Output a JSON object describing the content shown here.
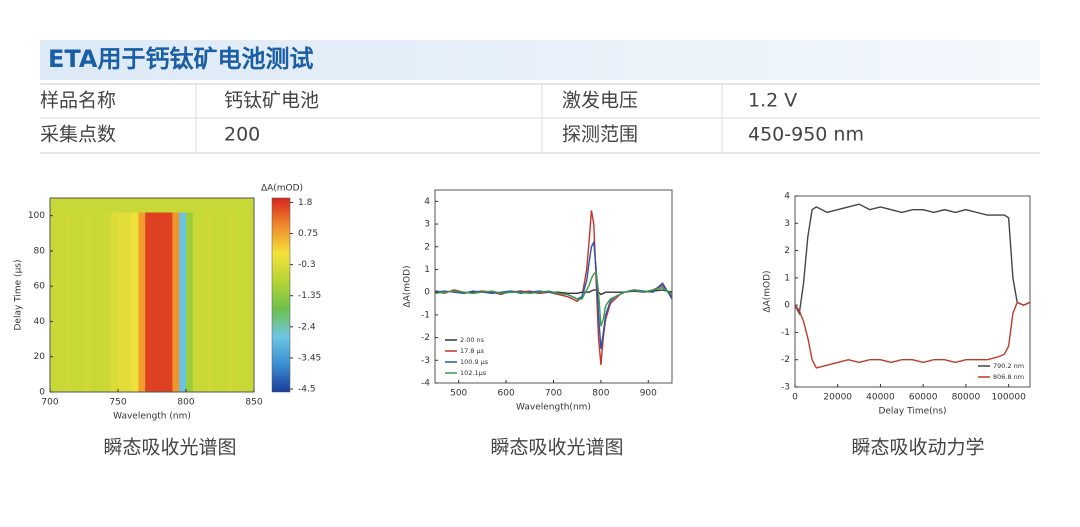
{
  "header": {
    "title": "ETA用于钙钛矿电池测试"
  },
  "table": {
    "rows": [
      [
        "样品名称",
        "钙钛矿电池",
        "激发电压",
        "1.2 V"
      ],
      [
        "采集点数",
        "200",
        "探测范围",
        "450-950 nm"
      ]
    ]
  },
  "chart_data": [
    {
      "type": "heatmap",
      "caption": "瞬态吸收光谱图",
      "xlabel": "Wavelength (nm)",
      "ylabel": "Delay Time  (μs)",
      "colorbar_label": "ΔA(mOD)",
      "xbins": [
        700,
        705,
        710,
        715,
        720,
        725,
        730,
        735,
        740,
        745,
        750,
        755,
        760,
        765,
        770,
        775,
        780,
        785,
        790,
        795,
        800,
        805,
        810,
        815,
        820,
        825,
        830,
        835,
        840,
        845,
        850
      ],
      "ybins": [
        0,
        102,
        110
      ],
      "z": [
        [
          -0.6,
          -0.6,
          -0.5,
          -0.6,
          -0.6,
          -0.5,
          -0.6,
          -0.6,
          -0.5,
          -0.3,
          -0.2,
          -0.2,
          0.0,
          0.8,
          1.7,
          1.7,
          1.7,
          1.7,
          0.9,
          -2.8,
          -1.2,
          -0.6,
          -0.6,
          -0.5,
          -0.6,
          -0.6,
          -0.5,
          -0.6,
          -0.6,
          -0.6
        ],
        [
          -0.6,
          -0.6,
          -0.6,
          -0.6,
          -0.6,
          -0.6,
          -0.6,
          -0.6,
          -0.6,
          -0.6,
          -0.6,
          -0.6,
          -0.6,
          -0.6,
          -0.6,
          -0.6,
          -0.6,
          -0.6,
          -0.6,
          -0.6,
          -0.6,
          -0.6,
          -0.6,
          -0.6,
          -0.6,
          -0.6,
          -0.6,
          -0.6,
          -0.6,
          -0.6
        ]
      ],
      "xlim": [
        700,
        850
      ],
      "xticks": [
        700,
        750,
        800,
        850
      ],
      "ylim": [
        0,
        110
      ],
      "yticks": [
        0,
        20,
        40,
        60,
        80,
        100
      ],
      "zlim": [
        -4.6,
        1.95
      ],
      "zticks": [
        1.8,
        0.75,
        -0.3,
        -1.35,
        -2.4,
        -3.45,
        -4.5
      ],
      "colormap": [
        "#1b3d9a",
        "#3b8fd2",
        "#6fc6e2",
        "#6dbf4c",
        "#b6d436",
        "#f4e13a",
        "#ef8a2b",
        "#d6261f"
      ]
    },
    {
      "type": "line",
      "caption": "瞬态吸收光谱图",
      "xlabel": "Wavelength(nm)",
      "ylabel": "ΔA(mOD)",
      "legend": "lower left",
      "x": [
        450,
        470,
        490,
        510,
        530,
        550,
        570,
        590,
        610,
        630,
        650,
        670,
        690,
        710,
        730,
        740,
        750,
        760,
        770,
        775,
        780,
        785,
        790,
        795,
        800,
        805,
        810,
        820,
        830,
        840,
        850,
        870,
        890,
        910,
        930,
        950
      ],
      "series": [
        {
          "name": "2.00 ns",
          "color": "#333333",
          "values": [
            0.05,
            0,
            0.05,
            -0.05,
            0,
            0.05,
            0,
            -0.05,
            0,
            0.05,
            0,
            -0.05,
            0,
            0,
            -0.05,
            -0.05,
            -0.05,
            0,
            0,
            0,
            0.05,
            0.1,
            0.1,
            0,
            -0.1,
            -0.05,
            0,
            0,
            0,
            0,
            0,
            0.05,
            0,
            0.05,
            0.1,
            0
          ]
        },
        {
          "name": "17.8 μs",
          "color": "#c8302c",
          "values": [
            0.05,
            -0.05,
            0.1,
            0,
            -0.05,
            0.05,
            0,
            -0.1,
            0.05,
            0,
            0.05,
            -0.05,
            0,
            -0.1,
            -0.2,
            -0.3,
            -0.4,
            -0.2,
            1.0,
            2.2,
            3.6,
            3.0,
            0.5,
            -2.0,
            -3.2,
            -2.0,
            -1.2,
            -0.5,
            -0.3,
            -0.1,
            0,
            0.1,
            0,
            0.1,
            0.3,
            -0.2
          ]
        },
        {
          "name": "100.9 μs",
          "color": "#2456b0",
          "values": [
            0,
            0.05,
            0,
            -0.05,
            0.05,
            0,
            -0.05,
            0,
            0.05,
            -0.05,
            0,
            0.05,
            0,
            -0.05,
            -0.1,
            -0.2,
            -0.3,
            -0.2,
            0.5,
            1.3,
            2.0,
            2.2,
            1.0,
            -1.0,
            -2.5,
            -1.8,
            -1.0,
            -0.4,
            -0.2,
            -0.1,
            0,
            0.1,
            0.05,
            0,
            0.4,
            -0.3
          ]
        },
        {
          "name": "102.1μs",
          "color": "#3a9a4a",
          "values": [
            -0.05,
            0,
            0.05,
            0,
            -0.05,
            0,
            0.05,
            -0.05,
            0,
            0,
            -0.05,
            0,
            0.05,
            -0.05,
            -0.1,
            -0.2,
            -0.3,
            -0.3,
            0.1,
            0.3,
            0.6,
            0.8,
            0.9,
            0,
            -1.5,
            -1.2,
            -0.6,
            -0.3,
            -0.2,
            -0.1,
            0,
            0.1,
            0,
            0.1,
            0.2,
            -0.1
          ]
        }
      ],
      "xlim": [
        450,
        950
      ],
      "xticks": [
        500,
        600,
        700,
        800,
        900
      ],
      "ylim": [
        -4,
        4.5
      ],
      "yticks": [
        -4,
        -3,
        -2,
        -1,
        0,
        1,
        2,
        3,
        4
      ]
    },
    {
      "type": "line",
      "caption": "瞬态吸收动力学",
      "xlabel": "Delay Time(ns)",
      "ylabel": "ΔA(mOD)",
      "legend": "lower right",
      "x": [
        0,
        2000,
        4000,
        6000,
        8000,
        10000,
        15000,
        20000,
        25000,
        30000,
        35000,
        40000,
        45000,
        50000,
        55000,
        60000,
        65000,
        70000,
        75000,
        80000,
        85000,
        90000,
        95000,
        98000,
        100000,
        102000,
        104000,
        107000,
        110000
      ],
      "series": [
        {
          "name": "790.2 nm",
          "color": "#444444",
          "values": [
            0,
            -0.3,
            0.8,
            2.5,
            3.5,
            3.6,
            3.4,
            3.5,
            3.6,
            3.7,
            3.5,
            3.6,
            3.5,
            3.4,
            3.5,
            3.5,
            3.4,
            3.5,
            3.4,
            3.5,
            3.4,
            3.3,
            3.3,
            3.3,
            3.2,
            1.0,
            0.1,
            0,
            0.1
          ]
        },
        {
          "name": "806.8 nm",
          "color": "#c0392b",
          "values": [
            0,
            -0.2,
            -0.6,
            -1.2,
            -2.0,
            -2.3,
            -2.2,
            -2.1,
            -2.0,
            -2.1,
            -2.0,
            -2.0,
            -2.1,
            -2.0,
            -2.0,
            -2.1,
            -2.0,
            -2.0,
            -2.1,
            -2.0,
            -2.0,
            -2.0,
            -1.9,
            -1.8,
            -1.5,
            -0.3,
            0.1,
            0,
            0.1
          ]
        }
      ],
      "xlim": [
        0,
        110000
      ],
      "xticks": [
        0,
        20000,
        40000,
        60000,
        80000,
        100000
      ],
      "ylim": [
        -3,
        4
      ],
      "yticks": [
        -3,
        -2,
        -1,
        0,
        1,
        2,
        3,
        4
      ]
    }
  ]
}
